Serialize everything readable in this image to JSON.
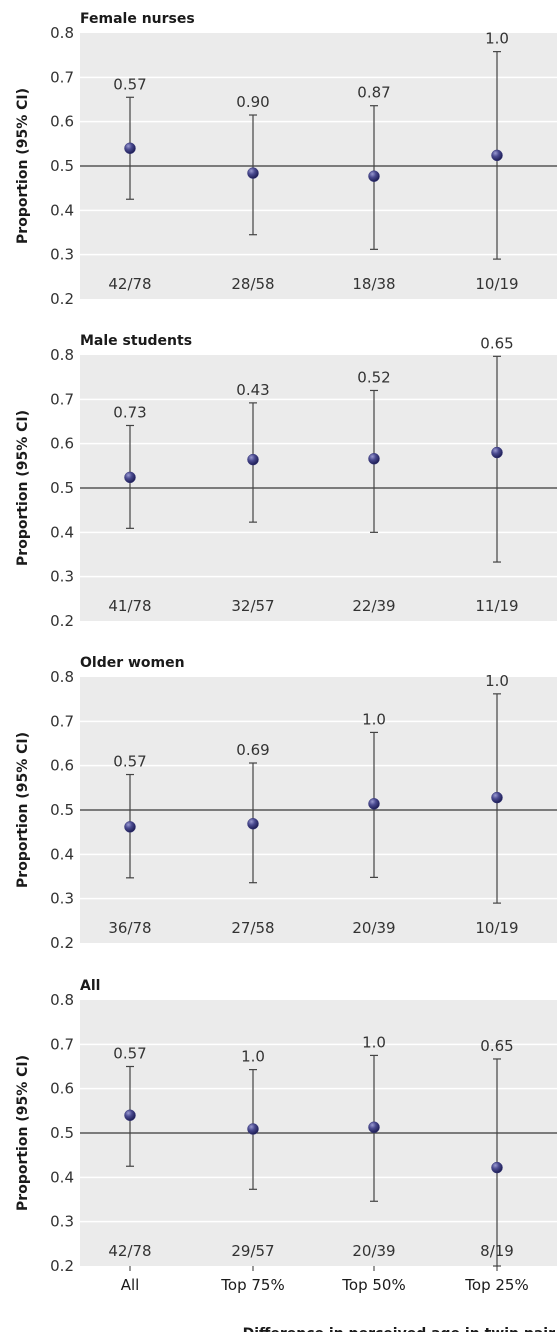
{
  "colors": {
    "panel_bg": "#ebebeb",
    "grid": "#ffffff",
    "reference_line": "#333333",
    "marker": "#3a3a7a",
    "error_bar": "#444444"
  },
  "chart_data": {
    "type": "scatter",
    "layout": "vertical-panels",
    "categories": [
      "All",
      "Top 75%",
      "Top 50%",
      "Top 25%"
    ],
    "xlabel": "Difference in perceived age in twin pair",
    "ylabel": "Proportion (95% CI)",
    "ylim": [
      0.2,
      0.8
    ],
    "yticks": [
      "0.2",
      "0.3",
      "0.4",
      "0.5",
      "0.6",
      "0.7",
      "0.8"
    ],
    "reference_line": 0.5,
    "grid": true,
    "panels": [
      {
        "title": "Female nurses",
        "points": [
          {
            "y": 0.54,
            "lower": 0.425,
            "upper": 0.655,
            "label": "0.57",
            "count": "42/78"
          },
          {
            "y": 0.484,
            "lower": 0.345,
            "upper": 0.615,
            "label": "0.90",
            "count": "28/58"
          },
          {
            "y": 0.477,
            "lower": 0.312,
            "upper": 0.636,
            "label": "0.87",
            "count": "18/38"
          },
          {
            "y": 0.524,
            "lower": 0.29,
            "upper": 0.758,
            "label": "1.0",
            "count": "10/19"
          }
        ]
      },
      {
        "title": "Male students",
        "points": [
          {
            "y": 0.524,
            "lower": 0.409,
            "upper": 0.641,
            "label": "0.73",
            "count": "41/78"
          },
          {
            "y": 0.564,
            "lower": 0.423,
            "upper": 0.692,
            "label": "0.43",
            "count": "32/57"
          },
          {
            "y": 0.566,
            "lower": 0.4,
            "upper": 0.72,
            "label": "0.52",
            "count": "22/39"
          },
          {
            "y": 0.58,
            "lower": 0.333,
            "upper": 0.797,
            "label": "0.65",
            "count": "11/19"
          }
        ]
      },
      {
        "title": "Older women",
        "points": [
          {
            "y": 0.462,
            "lower": 0.347,
            "upper": 0.58,
            "label": "0.57",
            "count": "36/78"
          },
          {
            "y": 0.469,
            "lower": 0.336,
            "upper": 0.606,
            "label": "0.69",
            "count": "27/58"
          },
          {
            "y": 0.514,
            "lower": 0.348,
            "upper": 0.675,
            "label": "1.0",
            "count": "20/39"
          },
          {
            "y": 0.528,
            "lower": 0.29,
            "upper": 0.762,
            "label": "1.0",
            "count": "10/19"
          }
        ]
      },
      {
        "title": "All",
        "points": [
          {
            "y": 0.54,
            "lower": 0.425,
            "upper": 0.65,
            "label": "0.57",
            "count": "42/78"
          },
          {
            "y": 0.509,
            "lower": 0.373,
            "upper": 0.643,
            "label": "1.0",
            "count": "29/57"
          },
          {
            "y": 0.513,
            "lower": 0.346,
            "upper": 0.675,
            "label": "1.0",
            "count": "20/39"
          },
          {
            "y": 0.422,
            "lower": 0.2,
            "upper": 0.667,
            "label": "0.65",
            "count": "8/19"
          }
        ]
      }
    ]
  }
}
